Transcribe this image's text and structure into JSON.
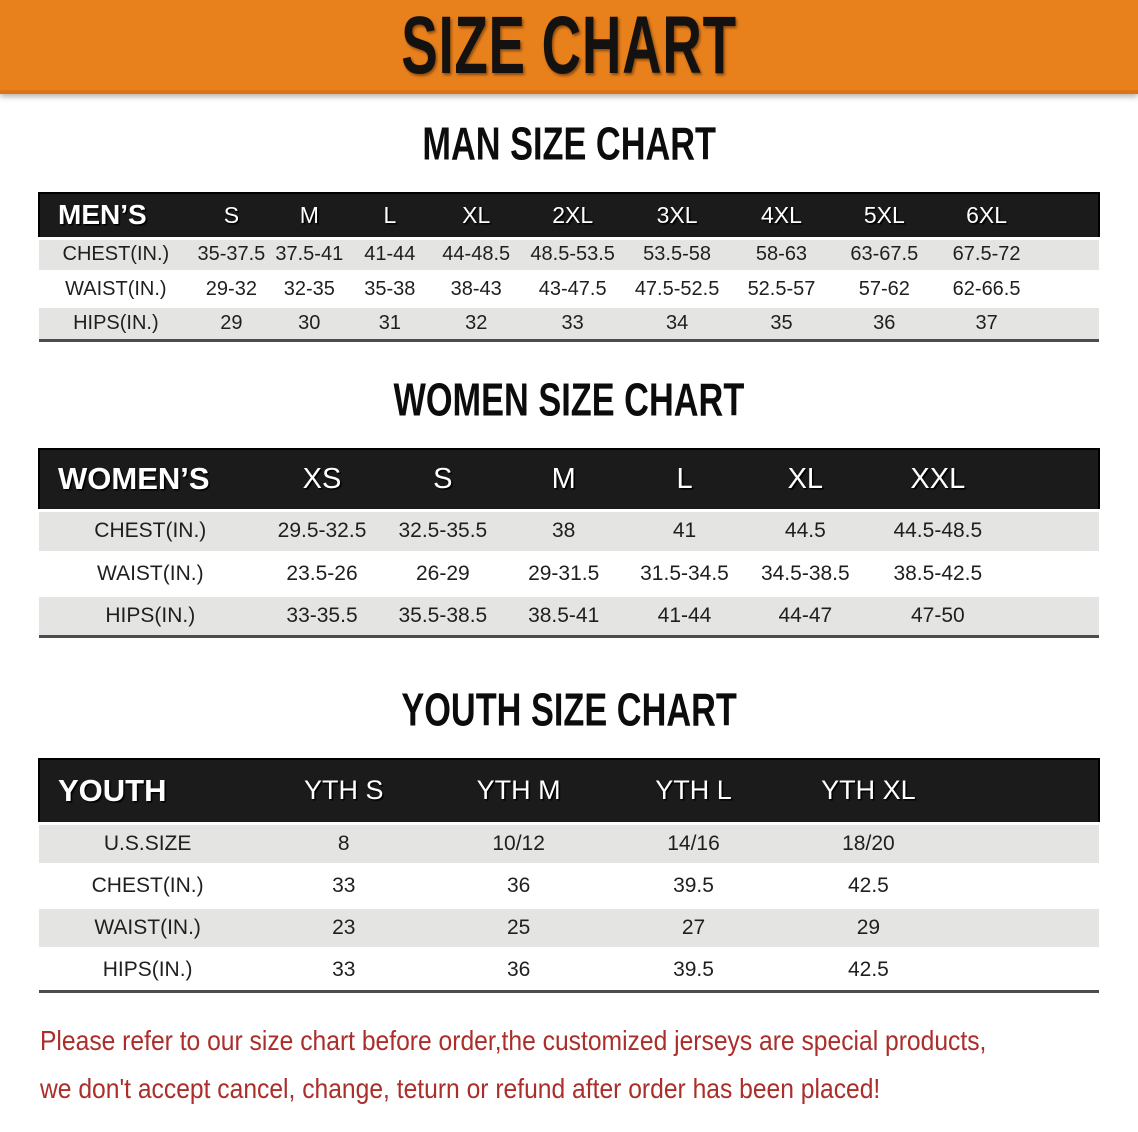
{
  "banner": {
    "title": "SIZE CHART",
    "background_color": "#e8801c",
    "text_color": "#141210"
  },
  "men": {
    "title": "MAN SIZE CHART",
    "table": {
      "header_label": "MEN’S",
      "columns": [
        "S",
        "M",
        "L",
        "XL",
        "2XL",
        "3XL",
        "4XL",
        "5XL",
        "6XL"
      ],
      "rows": [
        {
          "label": "CHEST(IN.)",
          "values": [
            "35-37.5",
            "37.5-41",
            "41-44",
            "44-48.5",
            "48.5-53.5",
            "53.5-58",
            "58-63",
            "63-67.5",
            "67.5-72"
          ]
        },
        {
          "label": "WAIST(IN.)",
          "values": [
            "29-32",
            "32-35",
            "35-38",
            "38-43",
            "43-47.5",
            "47.5-52.5",
            "52.5-57",
            "57-62",
            "62-66.5"
          ]
        },
        {
          "label": "HIPS(IN.)",
          "values": [
            "29",
            "30",
            "31",
            "32",
            "33",
            "34",
            "35",
            "36",
            "37"
          ]
        }
      ]
    }
  },
  "women": {
    "title": "WOMEN SIZE CHART",
    "table": {
      "header_label": "WOMEN’S",
      "columns": [
        "XS",
        "S",
        "M",
        "L",
        "XL",
        "XXL"
      ],
      "rows": [
        {
          "label": "CHEST(IN.)",
          "values": [
            "29.5-32.5",
            "32.5-35.5",
            "38",
            "41",
            "44.5",
            "44.5-48.5"
          ]
        },
        {
          "label": "WAIST(IN.)",
          "values": [
            "23.5-26",
            "26-29",
            "29-31.5",
            "31.5-34.5",
            "34.5-38.5",
            "38.5-42.5"
          ]
        },
        {
          "label": "HIPS(IN.)",
          "values": [
            "33-35.5",
            "35.5-38.5",
            "38.5-41",
            "41-44",
            "44-47",
            "47-50"
          ]
        }
      ]
    }
  },
  "youth": {
    "title": "YOUTH SIZE CHART",
    "table": {
      "header_label": "YOUTH",
      "columns": [
        "YTH S",
        "YTH M",
        "YTH L",
        "YTH XL"
      ],
      "rows": [
        {
          "label": "U.S.SIZE",
          "values": [
            "8",
            "10/12",
            "14/16",
            "18/20"
          ]
        },
        {
          "label": "CHEST(IN.)",
          "values": [
            "33",
            "36",
            "39.5",
            "42.5"
          ]
        },
        {
          "label": "WAIST(IN.)",
          "values": [
            "23",
            "25",
            "27",
            "29"
          ]
        },
        {
          "label": "HIPS(IN.)",
          "values": [
            "33",
            "36",
            "39.5",
            "42.5"
          ]
        }
      ]
    }
  },
  "disclaimer": {
    "line1": "Please refer to our size chart before order,the customized jerseys are special products,",
    "line2": "we don't accept cancel, change, teturn or refund after order has been placed!",
    "text_color": "#ab2e2a"
  },
  "style_colors": {
    "table_header_bg": "#1b1b1b",
    "row_stripe": "#e4e5e2"
  }
}
